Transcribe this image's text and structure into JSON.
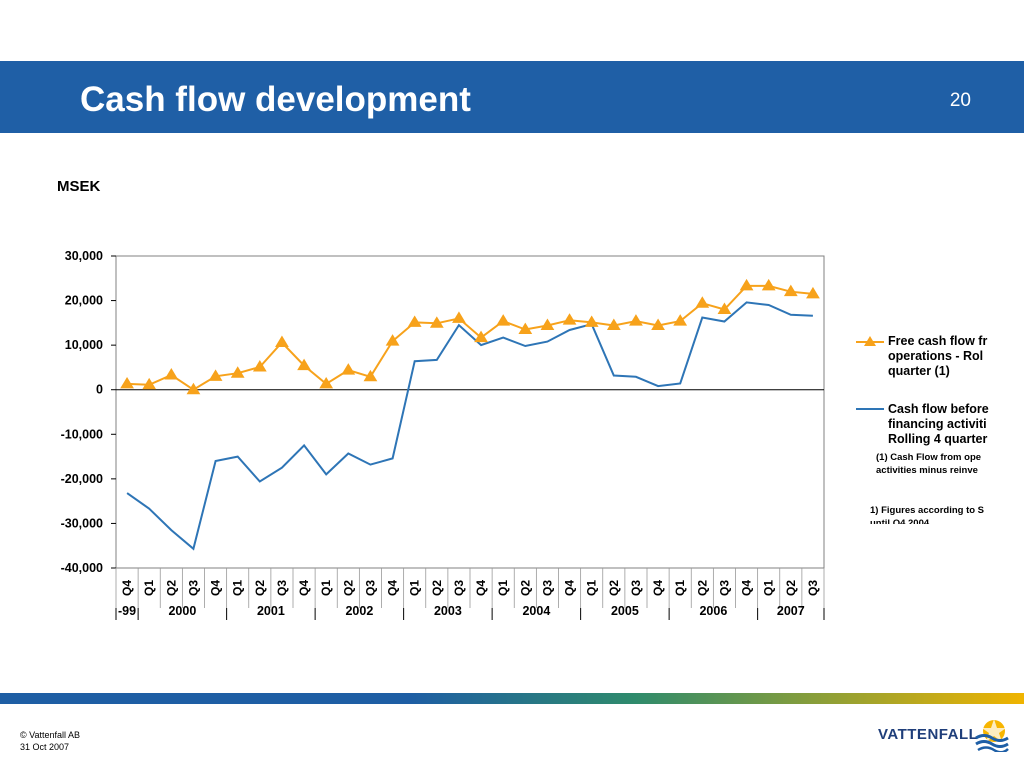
{
  "slide": {
    "title": "Cash flow development",
    "page_number": "20",
    "unit_label": "MSEK"
  },
  "legend": {
    "series1_label": "Free cash flow fr\noperations - Rol\nquarter (1)",
    "series2_label": "Cash flow before\nfinancing activiti\nRolling 4 quarter",
    "note1": "(1) Cash Flow from ope\nactivities minus reinve",
    "note2": "1) Figures according to S\nuntil Q4 2004"
  },
  "footer": {
    "copyright": "© Vattenfall AB",
    "date": "31 Oct 2007",
    "brand": "VATTENFALL"
  },
  "colors": {
    "header": "#1f5fa6",
    "series1": "#f7a21b",
    "series2": "#2e75b6",
    "brand_text": "#1f3e7a"
  },
  "chart_data": {
    "type": "line",
    "ylim": [
      -40000,
      30000
    ],
    "yticks": [
      30000,
      20000,
      10000,
      0,
      -10000,
      -20000,
      -30000,
      -40000
    ],
    "ytick_labels": [
      "30,000",
      "20,000",
      "10,000",
      "0",
      "-10,000",
      "-20,000",
      "-30,000",
      "-40,000"
    ],
    "categories": [
      "Q4",
      "Q1",
      "Q2",
      "Q3",
      "Q4",
      "Q1",
      "Q2",
      "Q3",
      "Q4",
      "Q1",
      "Q2",
      "Q3",
      "Q4",
      "Q1",
      "Q2",
      "Q3",
      "Q4",
      "Q1",
      "Q2",
      "Q3",
      "Q4",
      "Q1",
      "Q2",
      "Q3",
      "Q4",
      "Q1",
      "Q2",
      "Q3",
      "Q4",
      "Q1",
      "Q2",
      "Q3"
    ],
    "year_groups": [
      {
        "label": "-99",
        "count": 1
      },
      {
        "label": "2000",
        "count": 4
      },
      {
        "label": "2001",
        "count": 4
      },
      {
        "label": "2002",
        "count": 4
      },
      {
        "label": "2003",
        "count": 4
      },
      {
        "label": "2004",
        "count": 4
      },
      {
        "label": "2005",
        "count": 4
      },
      {
        "label": "2006",
        "count": 4
      },
      {
        "label": "2007",
        "count": 3
      }
    ],
    "series": [
      {
        "marker": "triangle",
        "values": [
          1300,
          1100,
          3300,
          0,
          3000,
          3700,
          5100,
          10600,
          5400,
          1300,
          4400,
          2900,
          10900,
          15100,
          14900,
          16000,
          11700,
          15400,
          13500,
          14400,
          15600,
          15100,
          14400,
          15400,
          14400,
          15400,
          19400,
          18000,
          23300,
          23300,
          22000,
          21500
        ]
      },
      {
        "marker": "none",
        "values": [
          -23200,
          -26700,
          -31500,
          -35700,
          -16000,
          -15000,
          -20600,
          -17500,
          -12500,
          -19000,
          -14300,
          -16800,
          -15400,
          6400,
          6700,
          14500,
          10000,
          11700,
          9800,
          10800,
          13400,
          14700,
          3200,
          2900,
          800,
          1400,
          16200,
          15300,
          19600,
          19000,
          16800,
          16600
        ]
      }
    ]
  }
}
